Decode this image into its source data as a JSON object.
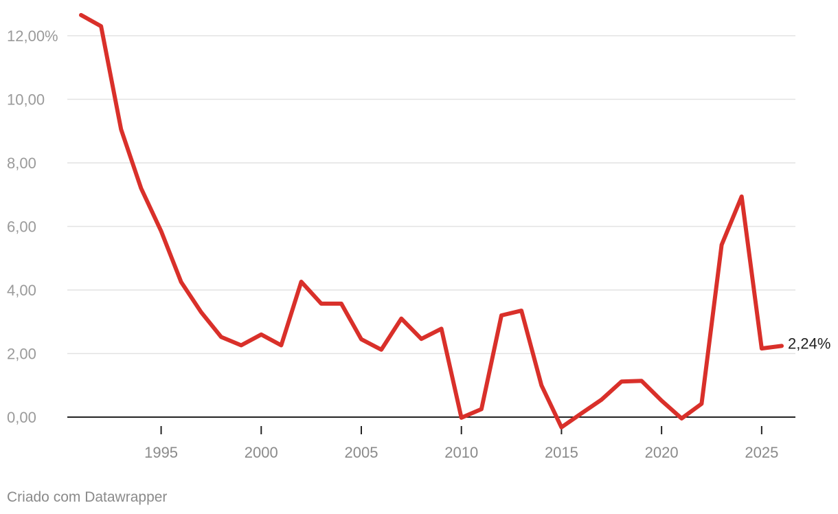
{
  "chart_data": {
    "type": "line",
    "x": [
      1991,
      1992,
      1993,
      1994,
      1995,
      1996,
      1997,
      1998,
      1999,
      2000,
      2001,
      2002,
      2003,
      2004,
      2005,
      2006,
      2007,
      2008,
      2009,
      2010,
      2011,
      2012,
      2013,
      2014,
      2015,
      2016,
      2017,
      2018,
      2019,
      2020,
      2021,
      2022,
      2023,
      2024,
      2025,
      2026
    ],
    "series": [
      {
        "values": [
          12.65,
          12.3,
          9.05,
          7.2,
          5.85,
          4.25,
          3.3,
          2.52,
          2.26,
          2.6,
          2.26,
          4.26,
          3.57,
          3.57,
          2.45,
          2.12,
          3.1,
          2.46,
          2.78,
          -0.02,
          0.25,
          3.2,
          3.35,
          1.0,
          -0.32,
          0.12,
          0.55,
          1.12,
          1.14,
          0.52,
          -0.04,
          0.42,
          5.42,
          6.94,
          2.16,
          2.24
        ],
        "color": "#d9302a"
      }
    ],
    "y_ticks": [
      "12,00%",
      "10,00",
      "8,00",
      "6,00",
      "4,00",
      "2,00",
      "0,00"
    ],
    "y_tick_values": [
      12,
      10,
      8,
      6,
      4,
      2,
      0
    ],
    "x_ticks": [
      "1995",
      "2000",
      "2005",
      "2010",
      "2015",
      "2020",
      "2025"
    ],
    "x_tick_values": [
      1995,
      2000,
      2005,
      2010,
      2015,
      2020,
      2025
    ],
    "ylim": [
      -0.4,
      12.8
    ],
    "xlim": [
      1990.95,
      2026.5
    ],
    "end_label": "2,24%",
    "grid": true
  },
  "footer": "Criado com Datawrapper"
}
